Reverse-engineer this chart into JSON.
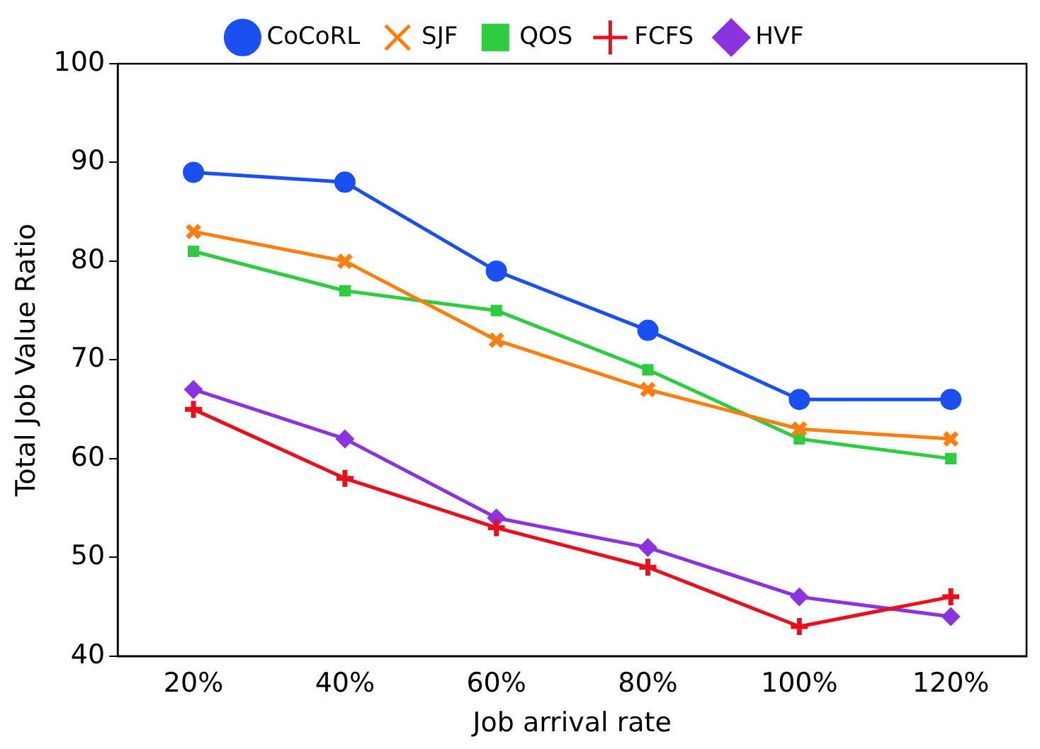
{
  "chart_data": {
    "type": "line",
    "xlabel": "Job arrival rate",
    "ylabel": "Total Job Value Ratio",
    "categories": [
      "20%",
      "40%",
      "60%",
      "80%",
      "100%",
      "120%"
    ],
    "ylim": [
      40,
      100
    ],
    "yticks": [
      40,
      50,
      60,
      70,
      80,
      90,
      100
    ],
    "grid": false,
    "legend": "top",
    "line_style": "solid",
    "series": [
      {
        "name": "CoCoRL",
        "color": "#1a4ff2",
        "marker": "circle",
        "values": [
          89,
          88,
          79,
          73,
          66,
          66
        ]
      },
      {
        "name": "SJF",
        "color": "#ff7f0e",
        "marker": "cross",
        "values": [
          83,
          80,
          72,
          67,
          63,
          62
        ]
      },
      {
        "name": "QOS",
        "color": "#2ecc40",
        "marker": "square",
        "values": [
          81,
          77,
          75,
          69,
          62,
          60
        ]
      },
      {
        "name": "FCFS",
        "color": "#e8101a",
        "marker": "plus",
        "values": [
          65,
          58,
          53,
          49,
          43,
          46
        ]
      },
      {
        "name": "HVF",
        "color": "#8b33e0",
        "marker": "diamond",
        "values": [
          67,
          62,
          54,
          51,
          46,
          44
        ]
      }
    ]
  }
}
